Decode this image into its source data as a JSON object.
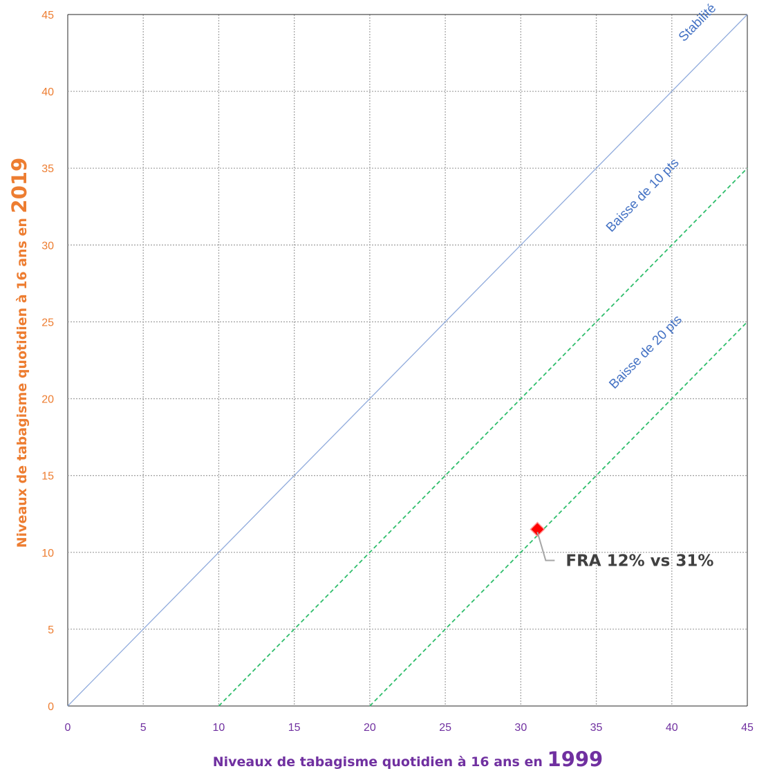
{
  "chart_data": {
    "type": "scatter",
    "xlim": [
      0,
      45
    ],
    "ylim": [
      0,
      45
    ],
    "x_ticks": [
      "0",
      "5",
      "10",
      "15",
      "20",
      "25",
      "30",
      "35",
      "40",
      "45"
    ],
    "y_ticks": [
      "0",
      "5",
      "10",
      "15",
      "20",
      "25",
      "30",
      "35",
      "40",
      "45"
    ],
    "grid": true,
    "xlabel": {
      "text": "Niveaux de tabagisme quotidien à 16 ans en ",
      "year": "1999"
    },
    "ylabel": {
      "text": "Niveaux de tabagisme quotidien à 16 ans en ",
      "year": "2019"
    },
    "reference_lines": [
      {
        "label": "Stabilité",
        "offset": 0,
        "x_range": [
          0,
          45
        ],
        "style": "solid",
        "color": "#8faadc"
      },
      {
        "label": "Baisse de 10 pts",
        "offset": -10,
        "x_range": [
          10,
          45
        ],
        "style": "dashed",
        "color": "#2ebd6b"
      },
      {
        "label": "Baisse de 20 pts",
        "offset": -20,
        "x_range": [
          20,
          45
        ],
        "style": "dashed",
        "color": "#2ebd6b"
      }
    ],
    "points": [
      {
        "label": "FRA 12% vs 31%",
        "x": 31.1,
        "y": 11.5,
        "color": "#ff0000"
      }
    ],
    "colors": {
      "x_axis": "#7030a0",
      "y_axis": "#ed7d31",
      "ref_label": "#4472c4",
      "grid": "#a6a6a6"
    }
  }
}
